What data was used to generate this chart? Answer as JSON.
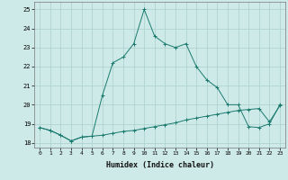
{
  "xlabel": "Humidex (Indice chaleur)",
  "x_values": [
    0,
    1,
    2,
    3,
    4,
    5,
    6,
    7,
    8,
    9,
    10,
    11,
    12,
    13,
    14,
    15,
    16,
    17,
    18,
    19,
    20,
    21,
    22,
    23
  ],
  "line1_y": [
    18.8,
    18.65,
    18.4,
    18.1,
    18.3,
    18.35,
    18.4,
    18.5,
    18.6,
    18.65,
    18.75,
    18.85,
    18.95,
    19.05,
    19.2,
    19.3,
    19.4,
    19.5,
    19.6,
    19.7,
    19.75,
    19.8,
    19.1,
    19.95
  ],
  "line2_y": [
    18.8,
    18.65,
    18.4,
    18.1,
    18.3,
    18.35,
    20.5,
    22.2,
    22.5,
    23.2,
    25.0,
    23.6,
    23.2,
    23.0,
    23.2,
    22.0,
    21.3,
    20.9,
    20.0,
    20.0,
    18.85,
    18.8,
    19.0,
    20.0
  ],
  "line_color": "#1a7a6e",
  "bg_color": "#ceeae8",
  "grid_color": "#aacfcc",
  "ylim": [
    17.75,
    25.4
  ],
  "xlim": [
    -0.5,
    23.5
  ],
  "yticks": [
    18,
    19,
    20,
    21,
    22,
    23,
    24,
    25
  ],
  "xticks": [
    0,
    1,
    2,
    3,
    4,
    5,
    6,
    7,
    8,
    9,
    10,
    11,
    12,
    13,
    14,
    15,
    16,
    17,
    18,
    19,
    20,
    21,
    22,
    23
  ]
}
